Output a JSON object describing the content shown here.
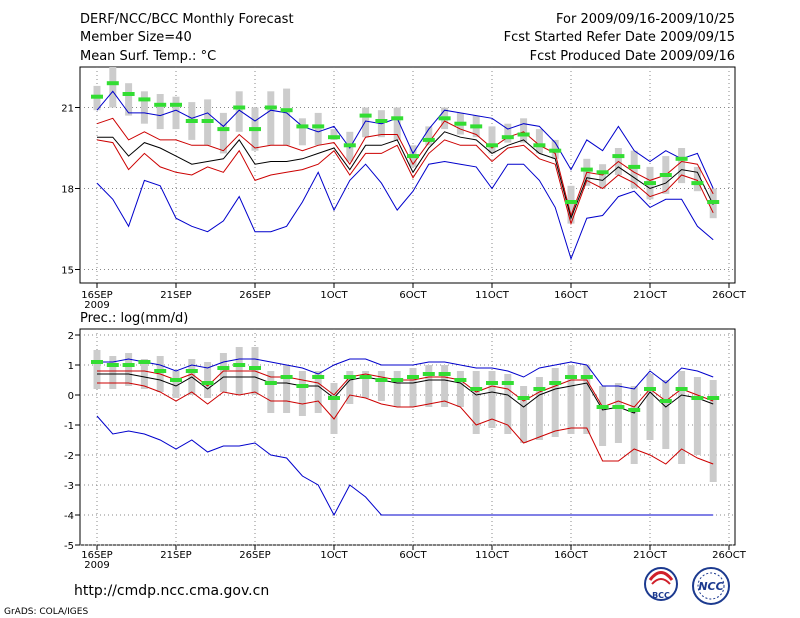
{
  "header": {
    "title": "DERF/NCC/BCC Monthly Forecast",
    "member": "Member Size=40",
    "variable": "Mean Surf. Temp.: °C",
    "period": "For 2009/09/16-2009/10/25",
    "started": "Fcst Started Refer Date 2009/09/15",
    "produced": "Fcst Produced Date 2009/09/16"
  },
  "footer": {
    "url": "http://cmdp.ncc.cma.gov.cn",
    "credit": "GrADS: COLA/IGES",
    "logo1": "BCC",
    "logo2": "NCC"
  },
  "colors": {
    "ens_max_min": "#0000cc",
    "p20_p80": "#cc0000",
    "mean": "#000000",
    "median": "#33dd33",
    "box": "#cccccc"
  },
  "chart_data": [
    {
      "type": "line",
      "name": "temperature",
      "title": "Mean Surf. Temp.: °C",
      "x_start": "2009-09-16",
      "n_days": 40,
      "xlabel_ticks": [
        {
          "label": "16SEP",
          "day": 0
        },
        {
          "label": "21SEP",
          "day": 5
        },
        {
          "label": "26SEP",
          "day": 10
        },
        {
          "label": "1OCT",
          "day": 15
        },
        {
          "label": "6OCT",
          "day": 20
        },
        {
          "label": "11OCT",
          "day": 25
        },
        {
          "label": "16OCT",
          "day": 30
        },
        {
          "label": "21OCT",
          "day": 35
        },
        {
          "label": "26OCT",
          "day": 40
        }
      ],
      "year_label": "2009",
      "yticks": [
        15,
        18,
        21
      ],
      "ylim": [
        14.5,
        22.5
      ],
      "series": [
        {
          "name": "max",
          "color": "#0000cc",
          "values": [
            20.9,
            21.6,
            20.8,
            20.8,
            20.7,
            20.9,
            20.6,
            20.8,
            20.3,
            20.9,
            20.5,
            20.9,
            20.8,
            20.3,
            20.1,
            20.3,
            19.5,
            20.5,
            20.4,
            20.6,
            19.3,
            20.2,
            20.9,
            20.8,
            20.7,
            20.6,
            20.2,
            20.4,
            20.3,
            19.7,
            18.7,
            19.8,
            19.4,
            20.3,
            19.4,
            19.0,
            19.4,
            19.1,
            19.3,
            18.0
          ]
        },
        {
          "name": "p80",
          "color": "#cc0000",
          "values": [
            20.4,
            20.6,
            19.8,
            20.1,
            19.8,
            19.8,
            19.6,
            19.6,
            19.4,
            20.0,
            19.5,
            19.6,
            19.6,
            19.4,
            19.6,
            19.7,
            18.9,
            19.9,
            20.0,
            20.0,
            18.9,
            19.7,
            20.5,
            20.2,
            20.0,
            19.5,
            19.9,
            20.1,
            19.6,
            19.3,
            17.0,
            18.6,
            18.5,
            19.0,
            18.6,
            18.3,
            18.5,
            19.0,
            18.9,
            17.8
          ]
        },
        {
          "name": "mean",
          "color": "#000000",
          "values": [
            19.9,
            19.9,
            19.2,
            19.7,
            19.5,
            19.2,
            18.9,
            19.0,
            19.1,
            19.8,
            18.9,
            19.0,
            19.0,
            19.1,
            19.3,
            19.5,
            18.7,
            19.6,
            19.6,
            19.8,
            18.6,
            19.5,
            20.1,
            19.9,
            19.8,
            19.3,
            19.6,
            19.8,
            19.3,
            19.1,
            16.9,
            18.4,
            18.3,
            18.8,
            18.4,
            18.0,
            18.2,
            18.7,
            18.6,
            17.4
          ]
        },
        {
          "name": "p20",
          "color": "#cc0000",
          "values": [
            19.8,
            19.7,
            18.7,
            19.3,
            18.8,
            18.6,
            18.5,
            18.8,
            18.6,
            19.4,
            18.3,
            18.5,
            18.6,
            18.7,
            18.9,
            19.4,
            18.5,
            19.3,
            19.3,
            19.6,
            18.4,
            19.3,
            19.8,
            19.6,
            19.6,
            19.0,
            19.5,
            19.6,
            19.1,
            18.9,
            16.7,
            18.3,
            18.0,
            18.5,
            18.2,
            17.7,
            17.9,
            18.5,
            18.3,
            17.1
          ]
        },
        {
          "name": "min",
          "color": "#0000cc",
          "values": [
            18.2,
            17.6,
            16.6,
            18.3,
            18.1,
            16.9,
            16.6,
            16.4,
            16.8,
            17.7,
            16.4,
            16.4,
            16.6,
            17.5,
            18.6,
            17.2,
            18.3,
            18.9,
            18.2,
            17.2,
            17.9,
            18.9,
            19.0,
            18.9,
            18.8,
            18.0,
            18.9,
            18.9,
            18.3,
            17.3,
            15.4,
            16.9,
            17.0,
            17.7,
            17.9,
            17.3,
            17.6,
            17.6,
            16.6,
            16.1
          ]
        },
        {
          "name": "median",
          "color": "#33dd33",
          "values": [
            21.4,
            21.9,
            21.5,
            21.3,
            21.1,
            21.1,
            20.5,
            20.5,
            20.2,
            21.0,
            20.2,
            21.0,
            20.9,
            20.3,
            20.3,
            19.9,
            19.6,
            20.7,
            20.5,
            20.6,
            19.2,
            19.8,
            20.6,
            20.4,
            20.3,
            19.6,
            19.9,
            20.0,
            19.6,
            19.4,
            17.5,
            18.7,
            18.6,
            19.2,
            18.8,
            18.2,
            18.5,
            19.1,
            18.2,
            17.5
          ]
        }
      ],
      "boxes": {
        "low": [
          20.9,
          21.0,
          20.7,
          20.4,
          20.2,
          20.2,
          19.8,
          19.6,
          19.3,
          20.1,
          19.4,
          19.6,
          19.6,
          19.6,
          19.6,
          19.8,
          19.0,
          19.9,
          19.9,
          19.8,
          18.8,
          19.6,
          20.2,
          20.0,
          19.9,
          19.3,
          19.7,
          19.7,
          19.3,
          19.1,
          16.7,
          18.1,
          18.0,
          18.5,
          18.0,
          17.6,
          17.8,
          18.2,
          17.9,
          16.9
        ],
        "high": [
          21.8,
          22.5,
          21.9,
          21.6,
          21.5,
          21.4,
          21.2,
          21.3,
          20.8,
          21.6,
          21.0,
          21.6,
          21.7,
          20.6,
          20.8,
          20.2,
          20.1,
          21.0,
          20.9,
          21.0,
          19.6,
          20.3,
          21.0,
          20.8,
          20.7,
          20.3,
          20.4,
          20.6,
          20.2,
          19.8,
          18.1,
          19.1,
          18.9,
          19.5,
          19.4,
          18.8,
          19.2,
          19.5,
          18.8,
          18.0
        ]
      }
    },
    {
      "type": "line",
      "name": "precipitation",
      "title": "Prec.: log(mm/d)",
      "x_start": "2009-09-16",
      "n_days": 40,
      "xlabel_ticks": [
        {
          "label": "16SEP",
          "day": 0
        },
        {
          "label": "21SEP",
          "day": 5
        },
        {
          "label": "26SEP",
          "day": 10
        },
        {
          "label": "1OCT",
          "day": 15
        },
        {
          "label": "6OCT",
          "day": 20
        },
        {
          "label": "11OCT",
          "day": 25
        },
        {
          "label": "16OCT",
          "day": 30
        },
        {
          "label": "21OCT",
          "day": 35
        },
        {
          "label": "26OCT",
          "day": 40
        }
      ],
      "year_label": "2009",
      "yticks": [
        -5,
        -4,
        -3,
        -2,
        -1,
        0,
        1,
        2
      ],
      "ylim": [
        -5,
        2.2
      ],
      "series": [
        {
          "name": "max",
          "color": "#0000cc",
          "values": [
            1.1,
            1.1,
            1.2,
            1.1,
            1.0,
            0.8,
            1.0,
            0.9,
            1.1,
            1.2,
            1.2,
            1.1,
            1.0,
            0.9,
            0.7,
            1.0,
            1.2,
            1.2,
            1.0,
            1.0,
            1.0,
            1.1,
            1.1,
            1.0,
            0.9,
            0.9,
            0.8,
            0.6,
            0.9,
            1.0,
            1.1,
            1.0,
            0.3,
            0.3,
            0.2,
            0.8,
            0.4,
            0.9,
            0.8,
            0.6
          ]
        },
        {
          "name": "p80",
          "color": "#cc0000",
          "values": [
            0.8,
            0.8,
            0.8,
            0.8,
            0.7,
            0.5,
            0.7,
            0.3,
            0.8,
            0.8,
            0.8,
            0.6,
            0.6,
            0.5,
            0.4,
            0.0,
            0.6,
            0.7,
            0.6,
            0.5,
            0.5,
            0.6,
            0.6,
            0.5,
            0.1,
            0.3,
            0.2,
            -0.2,
            0.1,
            0.3,
            0.5,
            0.5,
            -0.4,
            -0.2,
            -0.4,
            0.2,
            -0.2,
            0.2,
            0.0,
            -0.2
          ]
        },
        {
          "name": "mean",
          "color": "#000000",
          "values": [
            0.7,
            0.7,
            0.7,
            0.6,
            0.5,
            0.3,
            0.6,
            0.2,
            0.6,
            0.6,
            0.6,
            0.4,
            0.4,
            0.3,
            0.3,
            -0.1,
            0.5,
            0.6,
            0.5,
            0.4,
            0.4,
            0.5,
            0.5,
            0.4,
            0.0,
            0.1,
            0.0,
            -0.4,
            0.0,
            0.2,
            0.3,
            0.4,
            -0.5,
            -0.4,
            -0.6,
            0.1,
            -0.4,
            0.0,
            -0.1,
            -0.3
          ]
        },
        {
          "name": "p20",
          "color": "#cc0000",
          "values": [
            0.4,
            0.4,
            0.4,
            0.3,
            0.1,
            -0.2,
            0.1,
            -0.3,
            0.1,
            0.0,
            0.1,
            -0.2,
            -0.2,
            -0.3,
            -0.2,
            -0.8,
            0.0,
            -0.1,
            -0.3,
            -0.4,
            -0.4,
            -0.3,
            -0.2,
            -0.4,
            -1.0,
            -0.8,
            -1.0,
            -1.6,
            -1.4,
            -1.2,
            -1.1,
            -1.1,
            -2.2,
            -2.2,
            -1.8,
            -2.0,
            -2.3,
            -1.8,
            -2.1,
            -2.3
          ]
        },
        {
          "name": "min",
          "color": "#0000cc",
          "values": [
            -0.7,
            -1.3,
            -1.2,
            -1.3,
            -1.5,
            -1.8,
            -1.5,
            -1.9,
            -1.7,
            -1.7,
            -1.6,
            -2.0,
            -2.1,
            -2.7,
            -3.0,
            -4.0,
            -3.0,
            -3.4,
            -4.0,
            -4.0,
            -4.0,
            -4.0,
            -4.0,
            -4.0,
            -4.0,
            -4.0,
            -4.0,
            -4.0,
            -4.0,
            -4.0,
            -4.0,
            -4.0,
            -4.0,
            -4.0,
            -4.0,
            -4.0,
            -4.0,
            -4.0,
            -4.0,
            -4.0
          ]
        },
        {
          "name": "median",
          "color": "#33dd33",
          "values": [
            1.1,
            1.0,
            1.0,
            1.1,
            0.8,
            0.5,
            0.8,
            0.4,
            0.9,
            1.0,
            0.9,
            0.4,
            0.6,
            0.3,
            0.6,
            -0.1,
            0.6,
            0.6,
            0.5,
            0.5,
            0.6,
            0.7,
            0.7,
            0.5,
            0.2,
            0.4,
            0.4,
            -0.1,
            0.2,
            0.4,
            0.6,
            0.6,
            -0.4,
            -0.4,
            -0.5,
            0.2,
            -0.2,
            0.2,
            -0.1,
            -0.1
          ]
        }
      ],
      "boxes": {
        "low": [
          0.2,
          0.2,
          0.3,
          0.2,
          0.1,
          -0.1,
          0.0,
          -0.1,
          0.1,
          0.0,
          0.0,
          -0.6,
          -0.6,
          -0.7,
          -0.6,
          -1.3,
          -0.3,
          -0.1,
          -0.2,
          -0.4,
          -0.4,
          -0.4,
          -0.4,
          -0.4,
          -1.3,
          -1.1,
          -1.3,
          -1.6,
          -1.5,
          -1.4,
          -1.3,
          -1.3,
          -1.7,
          -1.6,
          -2.3,
          -1.5,
          -1.8,
          -2.3,
          -2.0,
          -2.9
        ],
        "high": [
          1.5,
          1.3,
          1.4,
          1.2,
          1.3,
          0.8,
          1.2,
          1.1,
          1.4,
          1.6,
          1.6,
          0.8,
          1.0,
          0.8,
          0.8,
          0.4,
          0.8,
          0.8,
          0.8,
          0.8,
          0.9,
          1.0,
          1.0,
          0.8,
          0.8,
          0.8,
          0.7,
          0.3,
          0.6,
          0.9,
          1.0,
          1.0,
          0.3,
          0.4,
          0.3,
          0.7,
          0.5,
          0.8,
          0.6,
          0.5
        ]
      }
    }
  ]
}
